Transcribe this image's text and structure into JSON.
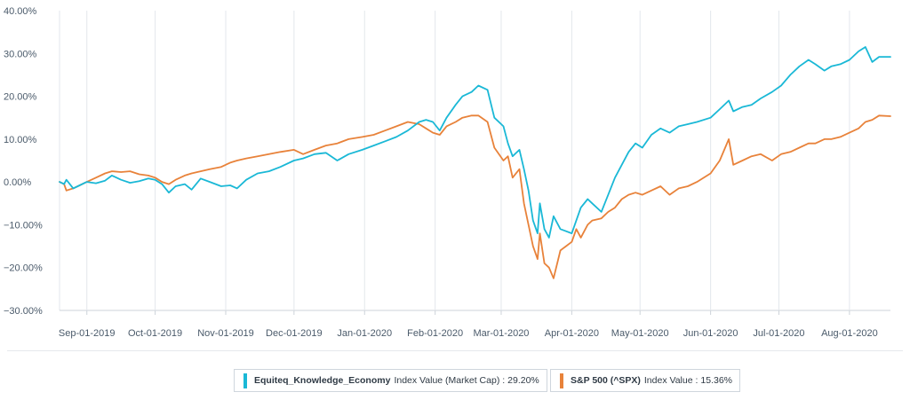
{
  "chart_data": {
    "type": "line",
    "title": "",
    "xlabel": "",
    "ylabel": "",
    "ylim": [
      -30,
      40
    ],
    "y_ticks": [
      -30,
      -20,
      -10,
      0,
      10,
      20,
      30,
      40
    ],
    "y_tick_labels": [
      "−30.00%",
      "−20.00%",
      "−10.00%",
      "0.00%",
      "10.00%",
      "20.00%",
      "30.00%",
      "40.00%"
    ],
    "x_range": [
      "2019-08-20",
      "2020-08-19"
    ],
    "x_ticks": [
      "2019-09-01",
      "2019-10-01",
      "2019-11-01",
      "2019-12-01",
      "2020-01-01",
      "2020-02-01",
      "2020-03-01",
      "2020-04-01",
      "2020-05-01",
      "2020-06-01",
      "2020-07-01",
      "2020-08-01"
    ],
    "x_tick_labels": [
      "Sep-01-2019",
      "Oct-01-2019",
      "Nov-01-2019",
      "Dec-01-2019",
      "Jan-01-2020",
      "Feb-01-2020",
      "Mar-01-2020",
      "Apr-01-2020",
      "May-01-2020",
      "Jun-01-2020",
      "Jul-01-2020",
      "Aug-01-2020"
    ],
    "grid": "vertical",
    "legend_position": "bottom",
    "series": [
      {
        "name": "Equiteq_Knowledge_Economy",
        "color": "#1ab8d6",
        "points": [
          [
            "2019-08-20",
            0.0
          ],
          [
            "2019-08-22",
            -0.5
          ],
          [
            "2019-08-23",
            0.5
          ],
          [
            "2019-08-26",
            -1.5
          ],
          [
            "2019-08-28",
            -1.0
          ],
          [
            "2019-09-01",
            0.0
          ],
          [
            "2019-09-05",
            -0.3
          ],
          [
            "2019-09-09",
            0.3
          ],
          [
            "2019-09-12",
            1.5
          ],
          [
            "2019-09-16",
            0.5
          ],
          [
            "2019-09-20",
            -0.2
          ],
          [
            "2019-09-24",
            0.2
          ],
          [
            "2019-09-28",
            0.8
          ],
          [
            "2019-10-01",
            0.5
          ],
          [
            "2019-10-04",
            -0.5
          ],
          [
            "2019-10-07",
            -2.5
          ],
          [
            "2019-10-10",
            -1.0
          ],
          [
            "2019-10-14",
            -0.5
          ],
          [
            "2019-10-17",
            -1.8
          ],
          [
            "2019-10-21",
            0.8
          ],
          [
            "2019-10-25",
            0.0
          ],
          [
            "2019-10-30",
            -1.0
          ],
          [
            "2019-11-03",
            -0.8
          ],
          [
            "2019-11-06",
            -1.5
          ],
          [
            "2019-11-10",
            0.5
          ],
          [
            "2019-11-15",
            2.0
          ],
          [
            "2019-11-20",
            2.5
          ],
          [
            "2019-11-25",
            3.5
          ],
          [
            "2019-12-01",
            5.0
          ],
          [
            "2019-12-05",
            5.5
          ],
          [
            "2019-12-10",
            6.5
          ],
          [
            "2019-12-15",
            6.8
          ],
          [
            "2019-12-20",
            5.0
          ],
          [
            "2019-12-25",
            6.5
          ],
          [
            "2019-12-31",
            7.5
          ],
          [
            "2020-01-05",
            8.5
          ],
          [
            "2020-01-10",
            9.5
          ],
          [
            "2020-01-15",
            10.5
          ],
          [
            "2020-01-20",
            12.0
          ],
          [
            "2020-01-25",
            14.0
          ],
          [
            "2020-01-28",
            14.5
          ],
          [
            "2020-01-31",
            14.0
          ],
          [
            "2020-02-03",
            12.0
          ],
          [
            "2020-02-06",
            15.0
          ],
          [
            "2020-02-10",
            18.0
          ],
          [
            "2020-02-13",
            20.0
          ],
          [
            "2020-02-17",
            21.0
          ],
          [
            "2020-02-20",
            22.5
          ],
          [
            "2020-02-24",
            21.5
          ],
          [
            "2020-02-27",
            15.0
          ],
          [
            "2020-03-02",
            13.0
          ],
          [
            "2020-03-04",
            9.0
          ],
          [
            "2020-03-06",
            6.0
          ],
          [
            "2020-03-09",
            7.5
          ],
          [
            "2020-03-11",
            3.0
          ],
          [
            "2020-03-13",
            -2.0
          ],
          [
            "2020-03-15",
            -9.0
          ],
          [
            "2020-03-17",
            -12.0
          ],
          [
            "2020-03-18",
            -5.0
          ],
          [
            "2020-03-20",
            -11.0
          ],
          [
            "2020-03-22",
            -13.0
          ],
          [
            "2020-03-24",
            -8.0
          ],
          [
            "2020-03-27",
            -11.0
          ],
          [
            "2020-04-01",
            -12.0
          ],
          [
            "2020-04-03",
            -9.0
          ],
          [
            "2020-04-05",
            -6.0
          ],
          [
            "2020-04-08",
            -4.0
          ],
          [
            "2020-04-10",
            -5.0
          ],
          [
            "2020-04-14",
            -7.0
          ],
          [
            "2020-04-17",
            -3.0
          ],
          [
            "2020-04-20",
            1.0
          ],
          [
            "2020-04-23",
            4.0
          ],
          [
            "2020-04-26",
            7.0
          ],
          [
            "2020-04-29",
            9.0
          ],
          [
            "2020-05-02",
            8.0
          ],
          [
            "2020-05-06",
            11.0
          ],
          [
            "2020-05-10",
            12.5
          ],
          [
            "2020-05-14",
            11.5
          ],
          [
            "2020-05-18",
            13.0
          ],
          [
            "2020-05-22",
            13.5
          ],
          [
            "2020-05-26",
            14.0
          ],
          [
            "2020-06-01",
            15.0
          ],
          [
            "2020-06-05",
            17.0
          ],
          [
            "2020-06-09",
            19.0
          ],
          [
            "2020-06-11",
            16.5
          ],
          [
            "2020-06-15",
            17.5
          ],
          [
            "2020-06-19",
            18.0
          ],
          [
            "2020-06-23",
            19.5
          ],
          [
            "2020-06-28",
            21.0
          ],
          [
            "2020-07-02",
            22.5
          ],
          [
            "2020-07-06",
            25.0
          ],
          [
            "2020-07-10",
            27.0
          ],
          [
            "2020-07-14",
            28.5
          ],
          [
            "2020-07-17",
            27.5
          ],
          [
            "2020-07-21",
            26.0
          ],
          [
            "2020-07-24",
            27.0
          ],
          [
            "2020-07-28",
            27.5
          ],
          [
            "2020-08-01",
            28.5
          ],
          [
            "2020-08-05",
            30.5
          ],
          [
            "2020-08-08",
            31.5
          ],
          [
            "2020-08-11",
            28.0
          ],
          [
            "2020-08-14",
            29.2
          ],
          [
            "2020-08-19",
            29.2
          ]
        ]
      },
      {
        "name": "S&P 500 (^SPX)",
        "color": "#e8823a",
        "points": [
          [
            "2019-08-20",
            0.0
          ],
          [
            "2019-08-22",
            -0.5
          ],
          [
            "2019-08-23",
            -2.0
          ],
          [
            "2019-08-26",
            -1.5
          ],
          [
            "2019-08-28",
            -1.0
          ],
          [
            "2019-09-01",
            0.0
          ],
          [
            "2019-09-05",
            1.0
          ],
          [
            "2019-09-09",
            2.0
          ],
          [
            "2019-09-12",
            2.5
          ],
          [
            "2019-09-16",
            2.3
          ],
          [
            "2019-09-20",
            2.5
          ],
          [
            "2019-09-24",
            1.8
          ],
          [
            "2019-09-28",
            1.5
          ],
          [
            "2019-10-01",
            1.0
          ],
          [
            "2019-10-04",
            0.0
          ],
          [
            "2019-10-07",
            -0.5
          ],
          [
            "2019-10-10",
            0.5
          ],
          [
            "2019-10-14",
            1.5
          ],
          [
            "2019-10-17",
            2.0
          ],
          [
            "2019-10-21",
            2.5
          ],
          [
            "2019-10-25",
            3.0
          ],
          [
            "2019-10-30",
            3.5
          ],
          [
            "2019-11-03",
            4.5
          ],
          [
            "2019-11-06",
            5.0
          ],
          [
            "2019-11-10",
            5.5
          ],
          [
            "2019-11-15",
            6.0
          ],
          [
            "2019-11-20",
            6.5
          ],
          [
            "2019-11-25",
            7.0
          ],
          [
            "2019-12-01",
            7.5
          ],
          [
            "2019-12-05",
            6.5
          ],
          [
            "2019-12-10",
            7.5
          ],
          [
            "2019-12-15",
            8.5
          ],
          [
            "2019-12-20",
            9.0
          ],
          [
            "2019-12-25",
            10.0
          ],
          [
            "2019-12-31",
            10.5
          ],
          [
            "2020-01-05",
            11.0
          ],
          [
            "2020-01-10",
            12.0
          ],
          [
            "2020-01-15",
            13.0
          ],
          [
            "2020-01-20",
            14.0
          ],
          [
            "2020-01-25",
            13.5
          ],
          [
            "2020-01-28",
            12.5
          ],
          [
            "2020-01-31",
            11.5
          ],
          [
            "2020-02-03",
            11.0
          ],
          [
            "2020-02-06",
            13.0
          ],
          [
            "2020-02-10",
            14.0
          ],
          [
            "2020-02-13",
            15.0
          ],
          [
            "2020-02-17",
            15.5
          ],
          [
            "2020-02-20",
            15.5
          ],
          [
            "2020-02-24",
            14.0
          ],
          [
            "2020-02-27",
            8.0
          ],
          [
            "2020-03-02",
            5.0
          ],
          [
            "2020-03-04",
            6.0
          ],
          [
            "2020-03-06",
            1.0
          ],
          [
            "2020-03-09",
            3.0
          ],
          [
            "2020-03-11",
            -5.0
          ],
          [
            "2020-03-13",
            -10.0
          ],
          [
            "2020-03-15",
            -15.0
          ],
          [
            "2020-03-17",
            -18.0
          ],
          [
            "2020-03-18",
            -12.0
          ],
          [
            "2020-03-20",
            -19.0
          ],
          [
            "2020-03-22",
            -20.0
          ],
          [
            "2020-03-24",
            -22.5
          ],
          [
            "2020-03-27",
            -16.0
          ],
          [
            "2020-04-01",
            -14.0
          ],
          [
            "2020-04-03",
            -11.0
          ],
          [
            "2020-04-05",
            -13.0
          ],
          [
            "2020-04-08",
            -10.0
          ],
          [
            "2020-04-10",
            -9.0
          ],
          [
            "2020-04-14",
            -8.5
          ],
          [
            "2020-04-17",
            -7.0
          ],
          [
            "2020-04-20",
            -6.0
          ],
          [
            "2020-04-23",
            -4.0
          ],
          [
            "2020-04-26",
            -3.0
          ],
          [
            "2020-04-29",
            -2.5
          ],
          [
            "2020-05-02",
            -3.0
          ],
          [
            "2020-05-06",
            -2.0
          ],
          [
            "2020-05-10",
            -1.0
          ],
          [
            "2020-05-14",
            -3.0
          ],
          [
            "2020-05-18",
            -1.5
          ],
          [
            "2020-05-22",
            -1.0
          ],
          [
            "2020-05-26",
            0.0
          ],
          [
            "2020-06-01",
            2.0
          ],
          [
            "2020-06-05",
            5.0
          ],
          [
            "2020-06-09",
            10.0
          ],
          [
            "2020-06-11",
            4.0
          ],
          [
            "2020-06-15",
            5.0
          ],
          [
            "2020-06-19",
            6.0
          ],
          [
            "2020-06-23",
            6.5
          ],
          [
            "2020-06-28",
            5.0
          ],
          [
            "2020-07-02",
            6.5
          ],
          [
            "2020-07-06",
            7.0
          ],
          [
            "2020-07-10",
            8.0
          ],
          [
            "2020-07-14",
            9.0
          ],
          [
            "2020-07-17",
            9.0
          ],
          [
            "2020-07-21",
            10.0
          ],
          [
            "2020-07-24",
            10.0
          ],
          [
            "2020-07-28",
            10.5
          ],
          [
            "2020-08-01",
            11.5
          ],
          [
            "2020-08-05",
            12.5
          ],
          [
            "2020-08-08",
            14.0
          ],
          [
            "2020-08-11",
            14.5
          ],
          [
            "2020-08-14",
            15.5
          ],
          [
            "2020-08-19",
            15.36
          ]
        ]
      }
    ]
  },
  "legend": {
    "items": [
      {
        "name": "Equiteq_Knowledge_Economy",
        "desc": "Index Value (Market Cap) :",
        "value": "29.20%",
        "color": "#1ab8d6"
      },
      {
        "name": "S&P 500 (^SPX)",
        "desc": "Index Value :",
        "value": "15.36%",
        "color": "#e8823a"
      }
    ]
  }
}
